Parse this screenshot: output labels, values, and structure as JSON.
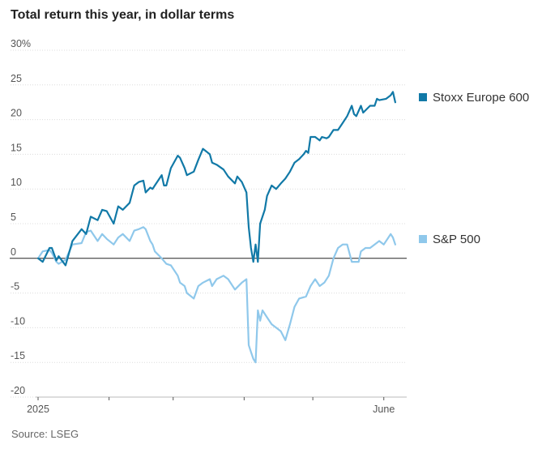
{
  "chart_data": {
    "type": "line",
    "title": "Total return this year, in dollar terms",
    "source": "Source: LSEG",
    "y_unit_suffix": "%",
    "ylim": [
      -20,
      30
    ],
    "yticks": [
      30,
      25,
      20,
      15,
      10,
      5,
      0,
      -5,
      -10,
      -15,
      -20
    ],
    "x_tick_labels": [
      "2025",
      "",
      "",
      "",
      "",
      "June"
    ],
    "x_month_ticks": [
      "2025-01-01",
      "2025-02-01",
      "2025-03-01",
      "2025-04-01",
      "2025-05-01",
      "2025-06-01"
    ],
    "xlim": [
      "2025-01-01",
      "2025-06-11"
    ],
    "grid": true,
    "zero_line": true,
    "series": [
      {
        "name": "Stoxx Europe 600",
        "color": "#1179A7",
        "points": [
          [
            "2025-01-01",
            0.0
          ],
          [
            "2025-01-03",
            -0.5
          ],
          [
            "2025-01-06",
            1.5
          ],
          [
            "2025-01-07",
            1.5
          ],
          [
            "2025-01-09",
            -0.3
          ],
          [
            "2025-01-10",
            0.3
          ],
          [
            "2025-01-13",
            -1.0
          ],
          [
            "2025-01-16",
            2.5
          ],
          [
            "2025-01-20",
            4.2
          ],
          [
            "2025-01-22",
            3.5
          ],
          [
            "2025-01-24",
            6.0
          ],
          [
            "2025-01-27",
            5.5
          ],
          [
            "2025-01-29",
            7.0
          ],
          [
            "2025-01-31",
            6.8
          ],
          [
            "2025-02-03",
            5.0
          ],
          [
            "2025-02-05",
            7.5
          ],
          [
            "2025-02-07",
            7.0
          ],
          [
            "2025-02-10",
            8.0
          ],
          [
            "2025-02-12",
            10.5
          ],
          [
            "2025-02-14",
            11.0
          ],
          [
            "2025-02-16",
            11.2
          ],
          [
            "2025-02-17",
            9.5
          ],
          [
            "2025-02-19",
            10.2
          ],
          [
            "2025-02-20",
            10.0
          ],
          [
            "2025-02-21",
            10.5
          ],
          [
            "2025-02-24",
            12.0
          ],
          [
            "2025-02-25",
            10.5
          ],
          [
            "2025-02-26",
            10.5
          ],
          [
            "2025-02-28",
            13.0
          ],
          [
            "2025-03-03",
            14.8
          ],
          [
            "2025-03-04",
            14.5
          ],
          [
            "2025-03-06",
            13.0
          ],
          [
            "2025-03-07",
            12.0
          ],
          [
            "2025-03-10",
            12.5
          ],
          [
            "2025-03-12",
            14.2
          ],
          [
            "2025-03-14",
            15.8
          ],
          [
            "2025-03-17",
            15.0
          ],
          [
            "2025-03-18",
            13.8
          ],
          [
            "2025-03-20",
            13.5
          ],
          [
            "2025-03-23",
            12.8
          ],
          [
            "2025-03-25",
            11.8
          ],
          [
            "2025-03-28",
            10.8
          ],
          [
            "2025-03-29",
            11.8
          ],
          [
            "2025-03-31",
            11.0
          ],
          [
            "2025-04-02",
            9.5
          ],
          [
            "2025-04-03",
            4.5
          ],
          [
            "2025-04-04",
            1.5
          ],
          [
            "2025-04-05",
            -0.5
          ],
          [
            "2025-04-06",
            2.0
          ],
          [
            "2025-04-07",
            -0.5
          ],
          [
            "2025-04-08",
            5.0
          ],
          [
            "2025-04-10",
            7.0
          ],
          [
            "2025-04-11",
            9.0
          ],
          [
            "2025-04-13",
            10.5
          ],
          [
            "2025-04-15",
            10.0
          ],
          [
            "2025-04-17",
            10.8
          ],
          [
            "2025-04-19",
            11.5
          ],
          [
            "2025-04-21",
            12.5
          ],
          [
            "2025-04-23",
            13.8
          ],
          [
            "2025-04-25",
            14.3
          ],
          [
            "2025-04-27",
            15.0
          ],
          [
            "2025-04-28",
            15.5
          ],
          [
            "2025-04-29",
            15.2
          ],
          [
            "2025-04-30",
            17.5
          ],
          [
            "2025-05-02",
            17.5
          ],
          [
            "2025-05-04",
            17.0
          ],
          [
            "2025-05-05",
            17.5
          ],
          [
            "2025-05-07",
            17.3
          ],
          [
            "2025-05-08",
            17.5
          ],
          [
            "2025-05-10",
            18.5
          ],
          [
            "2025-05-12",
            18.5
          ],
          [
            "2025-05-14",
            19.5
          ],
          [
            "2025-05-16",
            20.5
          ],
          [
            "2025-05-18",
            22.0
          ],
          [
            "2025-05-19",
            20.8
          ],
          [
            "2025-05-20",
            20.5
          ],
          [
            "2025-05-22",
            22.0
          ],
          [
            "2025-05-23",
            21.0
          ],
          [
            "2025-05-26",
            22.0
          ],
          [
            "2025-05-28",
            22.0
          ],
          [
            "2025-05-29",
            23.0
          ],
          [
            "2025-05-30",
            22.8
          ],
          [
            "2025-06-02",
            23.0
          ],
          [
            "2025-06-04",
            23.5
          ],
          [
            "2025-06-05",
            24.0
          ],
          [
            "2025-06-06",
            22.5
          ]
        ]
      },
      {
        "name": "S&P 500",
        "color": "#8FC8EB",
        "points": [
          [
            "2025-01-01",
            0.0
          ],
          [
            "2025-01-03",
            1.0
          ],
          [
            "2025-01-06",
            1.2
          ],
          [
            "2025-01-07",
            0.8
          ],
          [
            "2025-01-09",
            -0.5
          ],
          [
            "2025-01-10",
            -0.8
          ],
          [
            "2025-01-13",
            -0.2
          ],
          [
            "2025-01-16",
            2.0
          ],
          [
            "2025-01-20",
            2.2
          ],
          [
            "2025-01-22",
            3.8
          ],
          [
            "2025-01-24",
            4.0
          ],
          [
            "2025-01-27",
            2.5
          ],
          [
            "2025-01-29",
            3.5
          ],
          [
            "2025-01-31",
            2.8
          ],
          [
            "2025-02-03",
            2.0
          ],
          [
            "2025-02-05",
            3.0
          ],
          [
            "2025-02-07",
            3.5
          ],
          [
            "2025-02-10",
            2.5
          ],
          [
            "2025-02-12",
            4.0
          ],
          [
            "2025-02-14",
            4.2
          ],
          [
            "2025-02-16",
            4.5
          ],
          [
            "2025-02-17",
            4.2
          ],
          [
            "2025-02-19",
            2.5
          ],
          [
            "2025-02-20",
            2.0
          ],
          [
            "2025-02-21",
            1.0
          ],
          [
            "2025-02-24",
            0.0
          ],
          [
            "2025-02-26",
            -0.8
          ],
          [
            "2025-02-28",
            -1.0
          ],
          [
            "2025-03-03",
            -2.5
          ],
          [
            "2025-03-04",
            -3.5
          ],
          [
            "2025-03-06",
            -4.0
          ],
          [
            "2025-03-07",
            -5.0
          ],
          [
            "2025-03-10",
            -5.8
          ],
          [
            "2025-03-12",
            -4.0
          ],
          [
            "2025-03-14",
            -3.5
          ],
          [
            "2025-03-17",
            -3.0
          ],
          [
            "2025-03-18",
            -4.0
          ],
          [
            "2025-03-20",
            -3.0
          ],
          [
            "2025-03-23",
            -2.5
          ],
          [
            "2025-03-25",
            -3.0
          ],
          [
            "2025-03-28",
            -4.5
          ],
          [
            "2025-03-31",
            -3.5
          ],
          [
            "2025-04-02",
            -3.0
          ],
          [
            "2025-04-03",
            -12.5
          ],
          [
            "2025-04-04",
            -13.5
          ],
          [
            "2025-04-05",
            -14.5
          ],
          [
            "2025-04-06",
            -15.0
          ],
          [
            "2025-04-07",
            -7.5
          ],
          [
            "2025-04-08",
            -9.0
          ],
          [
            "2025-04-09",
            -7.5
          ],
          [
            "2025-04-11",
            -8.5
          ],
          [
            "2025-04-13",
            -9.5
          ],
          [
            "2025-04-15",
            -10.0
          ],
          [
            "2025-04-17",
            -10.5
          ],
          [
            "2025-04-19",
            -11.8
          ],
          [
            "2025-04-21",
            -9.5
          ],
          [
            "2025-04-23",
            -7.0
          ],
          [
            "2025-04-25",
            -5.8
          ],
          [
            "2025-04-28",
            -5.5
          ],
          [
            "2025-04-30",
            -4.0
          ],
          [
            "2025-05-02",
            -3.0
          ],
          [
            "2025-05-04",
            -4.0
          ],
          [
            "2025-05-06",
            -3.5
          ],
          [
            "2025-05-08",
            -2.5
          ],
          [
            "2025-05-10",
            0.0
          ],
          [
            "2025-05-12",
            1.5
          ],
          [
            "2025-05-14",
            2.0
          ],
          [
            "2025-05-16",
            2.0
          ],
          [
            "2025-05-18",
            -0.5
          ],
          [
            "2025-05-20",
            -0.5
          ],
          [
            "2025-05-21",
            -0.5
          ],
          [
            "2025-05-22",
            1.0
          ],
          [
            "2025-05-24",
            1.5
          ],
          [
            "2025-05-26",
            1.5
          ],
          [
            "2025-05-28",
            2.0
          ],
          [
            "2025-05-30",
            2.5
          ],
          [
            "2025-06-01",
            2.0
          ],
          [
            "2025-06-03",
            3.0
          ],
          [
            "2025-06-04",
            3.5
          ],
          [
            "2025-06-05",
            3.0
          ],
          [
            "2025-06-06",
            2.0
          ]
        ]
      }
    ]
  }
}
